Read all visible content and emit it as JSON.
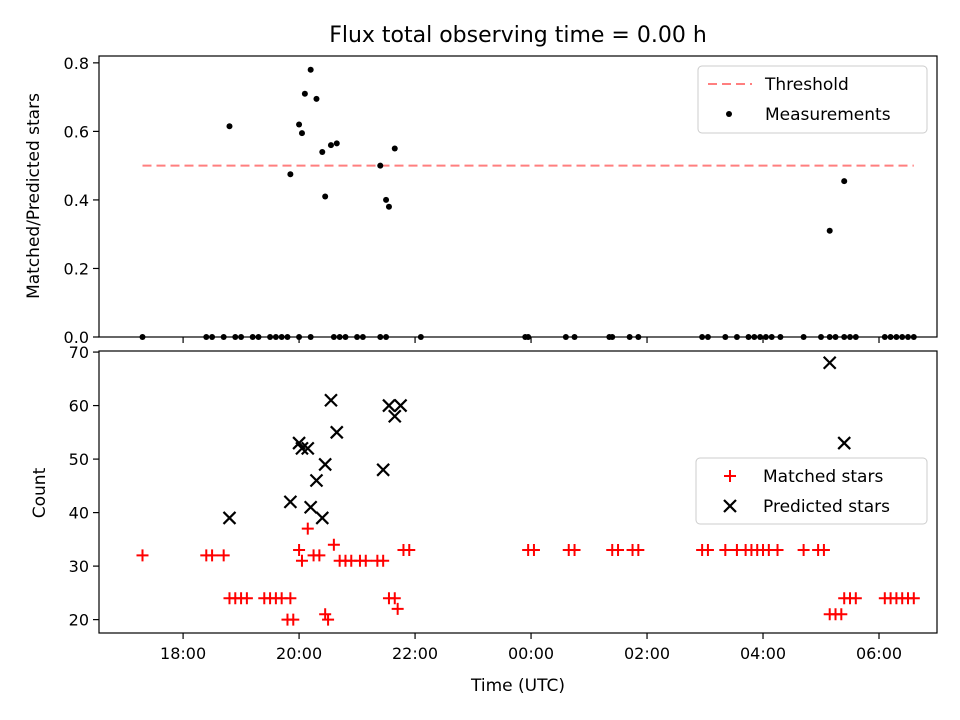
{
  "title": "Flux total observing time = 0.00 h",
  "chart_data": [
    {
      "type": "scatter",
      "ylabel": "Matched/Predicted stars",
      "xlabel": "",
      "x_unit": "hours since 00:00 UTC",
      "ylim": [
        0.0,
        0.82
      ],
      "yticks": [
        0.0,
        0.2,
        0.4,
        0.6,
        0.8
      ],
      "ytick_labels": [
        "0.0",
        "0.2",
        "0.4",
        "0.6",
        "0.8"
      ],
      "legend_position": "upper right",
      "threshold": {
        "name": "Threshold",
        "y": 0.5,
        "x_range": [
          -6.7,
          6.6
        ],
        "color": "#ff7f7f"
      },
      "series": [
        {
          "name": "Measurements",
          "marker": "dot",
          "color": "#000000",
          "points": [
            [
              -6.7,
              0.0
            ],
            [
              -5.6,
              0.0
            ],
            [
              -5.5,
              0.0
            ],
            [
              -5.3,
              0.0
            ],
            [
              -5.1,
              0.0
            ],
            [
              -5.0,
              0.0
            ],
            [
              -4.8,
              0.0
            ],
            [
              -4.7,
              0.0
            ],
            [
              -4.5,
              0.0
            ],
            [
              -4.4,
              0.0
            ],
            [
              -4.3,
              0.0
            ],
            [
              -4.2,
              0.0
            ],
            [
              -4.0,
              0.0
            ],
            [
              -3.8,
              0.0
            ],
            [
              -3.4,
              0.0
            ],
            [
              -3.3,
              0.0
            ],
            [
              -3.2,
              0.0
            ],
            [
              -3.0,
              0.0
            ],
            [
              -2.9,
              0.0
            ],
            [
              -2.6,
              0.0
            ],
            [
              -2.5,
              0.0
            ],
            [
              -1.9,
              0.0
            ],
            [
              -0.1,
              0.0
            ],
            [
              -0.05,
              0.0
            ],
            [
              0.6,
              0.0
            ],
            [
              0.75,
              0.0
            ],
            [
              1.35,
              0.0
            ],
            [
              1.4,
              0.0
            ],
            [
              1.7,
              0.0
            ],
            [
              1.85,
              0.0
            ],
            [
              2.95,
              0.0
            ],
            [
              3.05,
              0.0
            ],
            [
              3.35,
              0.0
            ],
            [
              3.55,
              0.0
            ],
            [
              3.75,
              0.0
            ],
            [
              3.85,
              0.0
            ],
            [
              3.95,
              0.0
            ],
            [
              4.05,
              0.0
            ],
            [
              4.15,
              0.0
            ],
            [
              4.3,
              0.0
            ],
            [
              4.7,
              0.0
            ],
            [
              5.0,
              0.0
            ],
            [
              5.15,
              0.0
            ],
            [
              5.25,
              0.0
            ],
            [
              5.4,
              0.0
            ],
            [
              5.5,
              0.0
            ],
            [
              5.6,
              0.0
            ],
            [
              6.1,
              0.0
            ],
            [
              6.2,
              0.0
            ],
            [
              6.3,
              0.0
            ],
            [
              6.4,
              0.0
            ],
            [
              6.5,
              0.0
            ],
            [
              6.6,
              0.0
            ],
            [
              -5.2,
              0.615
            ],
            [
              -4.15,
              0.475
            ],
            [
              -4.0,
              0.62
            ],
            [
              -3.95,
              0.595
            ],
            [
              -3.9,
              0.71
            ],
            [
              -3.8,
              0.78
            ],
            [
              -3.7,
              0.695
            ],
            [
              -3.6,
              0.54
            ],
            [
              -3.55,
              0.41
            ],
            [
              -3.45,
              0.56
            ],
            [
              -3.35,
              0.565
            ],
            [
              -2.6,
              0.5
            ],
            [
              -2.5,
              0.4
            ],
            [
              -2.45,
              0.38
            ],
            [
              -2.35,
              0.55
            ],
            [
              5.15,
              0.31
            ],
            [
              5.4,
              0.455
            ]
          ]
        }
      ]
    },
    {
      "type": "scatter",
      "ylabel": "Count",
      "xlabel": "Time (UTC)",
      "x_unit": "hours since 00:00 UTC",
      "xlim": [
        -7.45,
        7.0
      ],
      "xticks": [
        -6,
        -4,
        -2,
        0,
        2,
        4,
        6
      ],
      "xtick_labels": [
        "18:00",
        "20:00",
        "22:00",
        "00:00",
        "02:00",
        "04:00",
        "06:00"
      ],
      "ylim": [
        17.5,
        70.2
      ],
      "yticks": [
        20,
        30,
        40,
        50,
        60,
        70
      ],
      "ytick_labels": [
        "20",
        "30",
        "40",
        "50",
        "60",
        "70"
      ],
      "legend_position": "center right",
      "series": [
        {
          "name": "Matched stars",
          "marker": "plus",
          "color": "#ff0000",
          "points": [
            [
              -6.7,
              32
            ],
            [
              -5.6,
              32
            ],
            [
              -5.5,
              32
            ],
            [
              -5.3,
              32
            ],
            [
              -5.2,
              24
            ],
            [
              -5.1,
              24
            ],
            [
              -5.0,
              24
            ],
            [
              -4.9,
              24
            ],
            [
              -4.6,
              24
            ],
            [
              -4.5,
              24
            ],
            [
              -4.4,
              24
            ],
            [
              -4.3,
              24
            ],
            [
              -4.15,
              24
            ],
            [
              -4.2,
              20
            ],
            [
              -4.1,
              20
            ],
            [
              -4.0,
              33
            ],
            [
              -3.95,
              31
            ],
            [
              -3.85,
              37
            ],
            [
              -3.75,
              32
            ],
            [
              -3.65,
              32
            ],
            [
              -3.55,
              21
            ],
            [
              -3.5,
              20
            ],
            [
              -3.4,
              34
            ],
            [
              -3.3,
              31
            ],
            [
              -3.2,
              31
            ],
            [
              -3.1,
              31
            ],
            [
              -2.95,
              31
            ],
            [
              -2.85,
              31
            ],
            [
              -2.65,
              31
            ],
            [
              -2.55,
              31
            ],
            [
              -2.45,
              24
            ],
            [
              -2.35,
              24
            ],
            [
              -2.3,
              22
            ],
            [
              -2.2,
              33
            ],
            [
              -2.1,
              33
            ],
            [
              -0.05,
              33
            ],
            [
              0.05,
              33
            ],
            [
              0.65,
              33
            ],
            [
              0.75,
              33
            ],
            [
              1.4,
              33
            ],
            [
              1.5,
              33
            ],
            [
              1.75,
              33
            ],
            [
              1.85,
              33
            ],
            [
              2.95,
              33
            ],
            [
              3.05,
              33
            ],
            [
              3.35,
              33
            ],
            [
              3.55,
              33
            ],
            [
              3.7,
              33
            ],
            [
              3.8,
              33
            ],
            [
              3.9,
              33
            ],
            [
              4.0,
              33
            ],
            [
              4.1,
              33
            ],
            [
              4.25,
              33
            ],
            [
              4.7,
              33
            ],
            [
              4.95,
              33
            ],
            [
              5.05,
              33
            ],
            [
              5.15,
              21
            ],
            [
              5.25,
              21
            ],
            [
              5.35,
              21
            ],
            [
              5.4,
              24
            ],
            [
              5.5,
              24
            ],
            [
              5.6,
              24
            ],
            [
              6.1,
              24
            ],
            [
              6.2,
              24
            ],
            [
              6.3,
              24
            ],
            [
              6.4,
              24
            ],
            [
              6.5,
              24
            ],
            [
              6.6,
              24
            ]
          ]
        },
        {
          "name": "Predicted stars",
          "marker": "x",
          "color": "#000000",
          "points": [
            [
              -5.2,
              39
            ],
            [
              -4.15,
              42
            ],
            [
              -4.0,
              53
            ],
            [
              -3.95,
              52
            ],
            [
              -3.85,
              52
            ],
            [
              -3.8,
              41
            ],
            [
              -3.7,
              46
            ],
            [
              -3.6,
              39
            ],
            [
              -3.55,
              49
            ],
            [
              -3.45,
              61
            ],
            [
              -3.35,
              55
            ],
            [
              -2.55,
              48
            ],
            [
              -2.45,
              60
            ],
            [
              -2.35,
              58
            ],
            [
              -2.25,
              60
            ],
            [
              5.15,
              68
            ],
            [
              5.4,
              53
            ]
          ]
        }
      ]
    }
  ]
}
